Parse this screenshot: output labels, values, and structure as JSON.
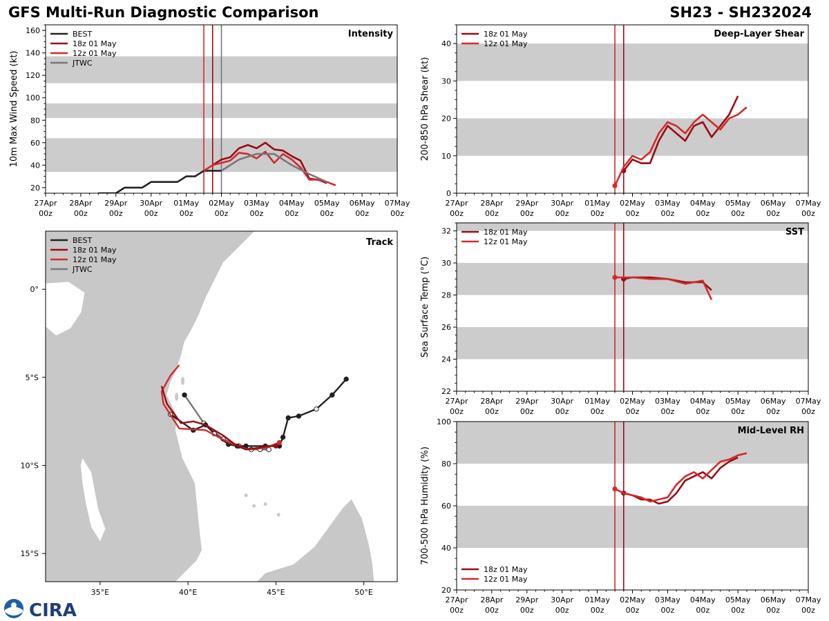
{
  "header": {
    "left_title": "GFS Multi-Run Diagnostic Comparison",
    "right_title": "SH23 - SH232024"
  },
  "logo": {
    "text": "CIRA",
    "emblem": "noaa-emblem-icon"
  },
  "colors": {
    "best": "#222222",
    "run18": "#9b0a14",
    "run12": "#d22a2a",
    "jtwc": "#777777",
    "band": "#cccccc",
    "land": "#c8c8c8"
  },
  "x_time_axis": {
    "ticks": [
      {
        "day": "27Apr",
        "hour": "00z"
      },
      {
        "day": "28Apr",
        "hour": "00z"
      },
      {
        "day": "29Apr",
        "hour": "00z"
      },
      {
        "day": "30Apr",
        "hour": "00z"
      },
      {
        "day": "01May",
        "hour": "00z"
      },
      {
        "day": "02May",
        "hour": "00z"
      },
      {
        "day": "03May",
        "hour": "00z"
      },
      {
        "day": "04May",
        "hour": "00z"
      },
      {
        "day": "05May",
        "hour": "00z"
      },
      {
        "day": "06May",
        "hour": "00z"
      },
      {
        "day": "07May",
        "hour": "00z"
      }
    ]
  },
  "chart_data": [
    {
      "id": "intensity",
      "type": "line",
      "title": "Intensity",
      "ylabel": "10m Max Wind Speed (kt)",
      "xlabel": "",
      "xlim": [
        0,
        10
      ],
      "ylim": [
        15,
        165
      ],
      "yticks": [
        20,
        40,
        60,
        80,
        100,
        120,
        140,
        160
      ],
      "bands": [
        [
          34,
          64
        ],
        [
          82,
          95
        ],
        [
          113,
          137
        ]
      ],
      "vlines": [
        {
          "x": 4.5,
          "series": "12z 01 May"
        },
        {
          "x": 4.75,
          "series": "18z 01 May"
        },
        {
          "x": 5.0,
          "series": "JTWC"
        }
      ],
      "legend_position": "top-left",
      "series": [
        {
          "name": "BEST",
          "key": "best",
          "x": [
            1.5,
            1.75,
            2.0,
            2.25,
            2.5,
            2.75,
            3.0,
            3.25,
            3.5,
            3.75,
            4.0,
            4.25,
            4.5,
            4.75,
            5.0
          ],
          "y": [
            15,
            15,
            15,
            20,
            20,
            20,
            25,
            25,
            25,
            25,
            30,
            30,
            35,
            35,
            35
          ]
        },
        {
          "name": "18z 01 May",
          "key": "run18",
          "x": [
            4.75,
            5.0,
            5.25,
            5.5,
            5.75,
            6.0,
            6.25,
            6.5,
            6.75,
            7.0,
            7.25,
            7.5,
            7.75,
            8.0
          ],
          "y": [
            40,
            45,
            47,
            55,
            58,
            55,
            60,
            54,
            53,
            48,
            44,
            28,
            27,
            24
          ]
        },
        {
          "name": "12z 01 May",
          "key": "run12",
          "x": [
            4.5,
            4.75,
            5.0,
            5.25,
            5.5,
            5.75,
            6.0,
            6.25,
            6.5,
            6.75,
            7.0,
            7.25,
            7.5,
            7.75,
            8.0,
            8.25
          ],
          "y": [
            35,
            40,
            42,
            44,
            51,
            50,
            46,
            52,
            42,
            50,
            45,
            38,
            27,
            27,
            25,
            22
          ]
        },
        {
          "name": "JTWC",
          "key": "jtwc",
          "x": [
            5.0,
            5.5,
            6.0,
            6.5,
            7.0,
            7.5,
            8.0
          ],
          "y": [
            35,
            45,
            50,
            50,
            40,
            32,
            25
          ]
        }
      ]
    },
    {
      "id": "shear",
      "type": "line",
      "title": "Deep-Layer Shear",
      "ylabel": "200-850 hPa Shear (kt)",
      "xlabel": "",
      "xlim": [
        0,
        10
      ],
      "ylim": [
        0,
        45
      ],
      "yticks": [
        0,
        10,
        20,
        30,
        40
      ],
      "bands": [
        [
          10,
          20
        ],
        [
          30,
          40
        ]
      ],
      "vlines": [
        {
          "x": 4.5,
          "series": "12z 01 May"
        },
        {
          "x": 4.75,
          "series": "18z 01 May"
        }
      ],
      "legend_position": "top-left",
      "series": [
        {
          "name": "18z 01 May",
          "key": "run18",
          "x": [
            4.75,
            5.0,
            5.25,
            5.5,
            5.75,
            6.0,
            6.25,
            6.5,
            6.75,
            7.0,
            7.25,
            7.5,
            7.75,
            8.0
          ],
          "y": [
            6,
            9,
            8,
            8,
            14,
            18,
            16,
            14,
            18,
            19,
            15,
            18,
            21,
            26
          ]
        },
        {
          "name": "12z 01 May",
          "key": "run12",
          "x": [
            4.5,
            4.75,
            5.0,
            5.25,
            5.5,
            5.75,
            6.0,
            6.25,
            6.5,
            6.75,
            7.0,
            7.25,
            7.5,
            7.75,
            8.0,
            8.25
          ],
          "y": [
            2,
            7,
            10,
            9,
            11,
            16,
            19,
            18,
            16,
            19,
            21,
            19,
            17,
            20,
            21,
            23
          ]
        }
      ]
    },
    {
      "id": "sst",
      "type": "line",
      "title": "SST",
      "ylabel": "Sea Surface Temp (°C)",
      "xlabel": "",
      "xlim": [
        0,
        10
      ],
      "ylim": [
        22,
        32.5
      ],
      "yticks": [
        22,
        24,
        26,
        28,
        30,
        32
      ],
      "bands": [
        [
          24,
          26
        ],
        [
          28,
          30
        ],
        [
          32,
          34
        ]
      ],
      "vlines": [
        {
          "x": 4.5,
          "series": "12z 01 May"
        },
        {
          "x": 4.75,
          "series": "18z 01 May"
        }
      ],
      "legend_position": "top-left",
      "series": [
        {
          "name": "18z 01 May",
          "key": "run18",
          "x": [
            4.75,
            5.0,
            5.5,
            6.0,
            6.5,
            7.0,
            7.25
          ],
          "y": [
            29.0,
            29.1,
            29.1,
            29.0,
            28.8,
            28.8,
            28.3
          ]
        },
        {
          "name": "12z 01 May",
          "key": "run12",
          "x": [
            4.5,
            4.75,
            5.0,
            5.5,
            6.0,
            6.5,
            7.0,
            7.25
          ],
          "y": [
            29.1,
            29.1,
            29.1,
            29.0,
            29.0,
            28.7,
            28.9,
            27.7
          ]
        }
      ]
    },
    {
      "id": "rh",
      "type": "line",
      "title": "Mid-Level RH",
      "ylabel": "700-500 hPa Humidity (%)",
      "xlabel": "",
      "xlim": [
        0,
        10
      ],
      "ylim": [
        20,
        100
      ],
      "yticks": [
        20,
        40,
        60,
        80,
        100
      ],
      "bands": [
        [
          40,
          60
        ],
        [
          80,
          100
        ]
      ],
      "vlines": [
        {
          "x": 4.5,
          "series": "12z 01 May"
        },
        {
          "x": 4.75,
          "series": "18z 01 May"
        }
      ],
      "legend_position": "bottom-left",
      "series": [
        {
          "name": "18z 01 May",
          "key": "run18",
          "x": [
            4.75,
            5.0,
            5.25,
            5.5,
            5.75,
            6.0,
            6.25,
            6.5,
            6.75,
            7.0,
            7.25,
            7.5,
            7.75,
            8.0
          ],
          "y": [
            66,
            65,
            63,
            63,
            61,
            62,
            66,
            72,
            74,
            76,
            73,
            78,
            81,
            83
          ]
        },
        {
          "name": "12z 01 May",
          "key": "run12",
          "x": [
            4.5,
            4.75,
            5.0,
            5.25,
            5.5,
            5.75,
            6.0,
            6.25,
            6.5,
            6.75,
            7.0,
            7.25,
            7.5,
            7.75,
            8.0,
            8.25
          ],
          "y": [
            68,
            66,
            65,
            64,
            62,
            63,
            64,
            70,
            74,
            76,
            73,
            77,
            81,
            82,
            84,
            85
          ]
        }
      ]
    },
    {
      "id": "track",
      "type": "line",
      "title": "Track",
      "xlabel": "",
      "ylabel": "",
      "xlim": [
        31.9,
        51.9
      ],
      "ylim": [
        -16.6,
        3.3
      ],
      "xticks": [
        {
          "v": 35,
          "label": "35°E"
        },
        {
          "v": 40,
          "label": "40°E"
        },
        {
          "v": 45,
          "label": "45°E"
        },
        {
          "v": 50,
          "label": "50°E"
        }
      ],
      "yticks": [
        {
          "v": 0,
          "label": "0°"
        },
        {
          "v": -5,
          "label": "5°S"
        },
        {
          "v": -10,
          "label": "10°S"
        },
        {
          "v": -15,
          "label": "15°S"
        }
      ],
      "legend_position": "top-left",
      "series": [
        {
          "name": "BEST",
          "key": "best",
          "lon": [
            49.0,
            48.2,
            47.3,
            46.3,
            45.7,
            45.4,
            45.2,
            44.4,
            43.3,
            42.8,
            42.3,
            41.5,
            41.0,
            40.3,
            39.0
          ],
          "lat": [
            -5.1,
            -6.0,
            -6.8,
            -7.2,
            -7.3,
            -8.4,
            -8.9,
            -8.9,
            -8.9,
            -8.9,
            -8.8,
            -8.2,
            -7.7,
            -8.0,
            -7.1
          ],
          "open": [
            false,
            false,
            true,
            false,
            false,
            false,
            false,
            false,
            false,
            false,
            false,
            true,
            false,
            false,
            true
          ]
        },
        {
          "name": "18z 01 May",
          "key": "run18",
          "lon": [
            45.0,
            44.6,
            44.0,
            43.3,
            42.8,
            42.0,
            41.0,
            40.3,
            39.6,
            38.8,
            38.5
          ],
          "lat": [
            -8.9,
            -8.9,
            -9.0,
            -9.1,
            -8.9,
            -8.3,
            -7.7,
            -7.5,
            -7.6,
            -6.5,
            -5.5
          ],
          "open": []
        },
        {
          "name": "12z 01 May",
          "key": "run12",
          "lon": [
            45.2,
            44.4,
            43.4,
            42.3,
            41.0,
            39.5,
            38.6,
            38.5,
            39.0,
            39.5
          ],
          "lat": [
            -8.7,
            -9.0,
            -9.1,
            -8.7,
            -8.0,
            -7.9,
            -6.5,
            -5.8,
            -4.9,
            -4.3
          ],
          "open": []
        },
        {
          "name": "JTWC",
          "key": "jtwc",
          "lon": [
            44.6,
            44.1,
            43.6,
            42.9,
            42.0,
            40.9,
            39.8
          ],
          "lat": [
            -9.1,
            -9.1,
            -9.1,
            -8.9,
            -8.5,
            -7.6,
            -6.0
          ],
          "open": [
            true,
            true,
            true,
            true,
            true,
            true,
            false
          ]
        }
      ]
    }
  ]
}
